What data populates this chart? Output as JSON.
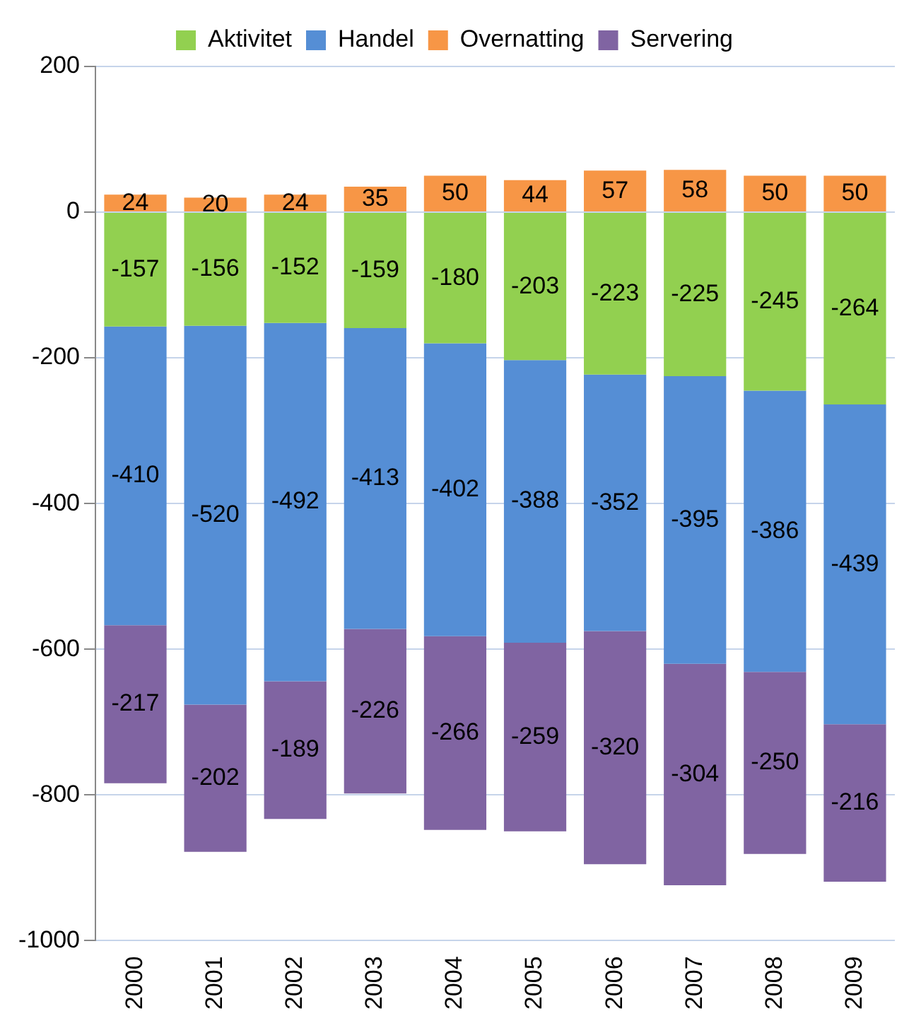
{
  "chart_data": {
    "type": "bar",
    "stacked": true,
    "categories": [
      "2000",
      "2001",
      "2002",
      "2003",
      "2004",
      "2005",
      "2006",
      "2007",
      "2008",
      "2009"
    ],
    "series": [
      {
        "name": "Aktivitet",
        "color": "#92d050",
        "values": [
          -157,
          -156,
          -152,
          -159,
          -180,
          -203,
          -223,
          -225,
          -245,
          -264
        ]
      },
      {
        "name": "Handel",
        "color": "#558ed5",
        "values": [
          -410,
          -520,
          -492,
          -413,
          -402,
          -388,
          -352,
          -395,
          -386,
          -439
        ]
      },
      {
        "name": "Overnatting",
        "color": "#f79646",
        "values": [
          24,
          20,
          24,
          35,
          50,
          44,
          57,
          58,
          50,
          50
        ]
      },
      {
        "name": "Servering",
        "color": "#8064a2",
        "values": [
          -217,
          -202,
          -189,
          -226,
          -266,
          -259,
          -320,
          -304,
          -250,
          -216
        ]
      }
    ],
    "ylim": [
      -1000,
      200
    ],
    "yticks": [
      -1000,
      -800,
      -600,
      -400,
      -200,
      0,
      200
    ],
    "grid": "y",
    "legend": "top",
    "data_labels": true
  }
}
